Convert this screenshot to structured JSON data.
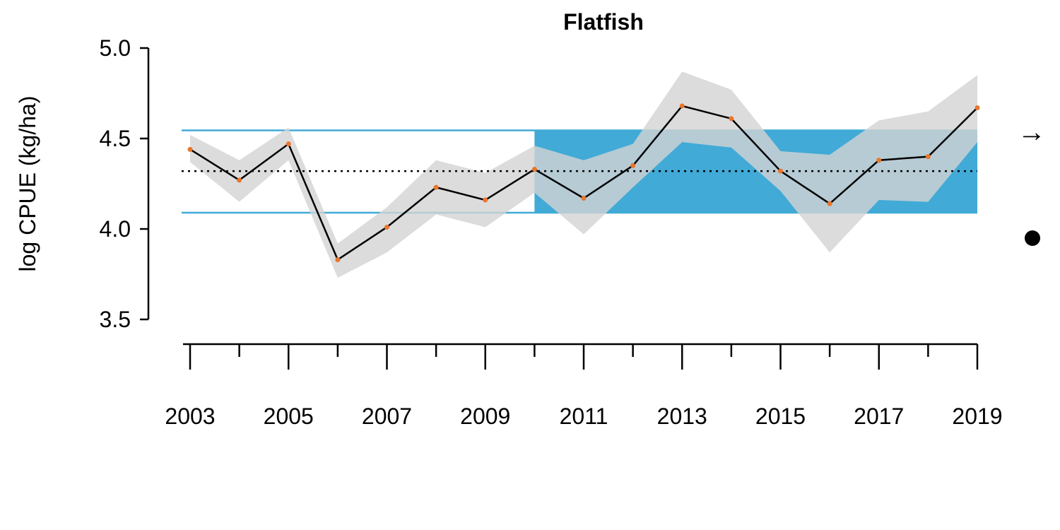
{
  "chart_data": {
    "type": "line",
    "title": "Flatfish",
    "ylabel": "log CPUE (kg/ha)",
    "xlabel": "",
    "ylim": [
      3.5,
      5.0
    ],
    "xlim": [
      2003,
      2019
    ],
    "y_ticks": [
      "3.5",
      "4.0",
      "4.5",
      "5.0"
    ],
    "x_ticks": [
      "2003",
      "2005",
      "2007",
      "2009",
      "2011",
      "2013",
      "2015",
      "2017",
      "2019"
    ],
    "x_minor_ticks": [
      2004,
      2006,
      2008,
      2010,
      2012,
      2014,
      2016,
      2018
    ],
    "x": [
      2003,
      2004,
      2005,
      2006,
      2007,
      2008,
      2009,
      2010,
      2011,
      2012,
      2013,
      2014,
      2015,
      2016,
      2017,
      2018,
      2019
    ],
    "values": [
      4.44,
      4.27,
      4.47,
      3.83,
      4.01,
      4.23,
      4.16,
      4.33,
      4.17,
      4.35,
      4.68,
      4.61,
      4.32,
      4.14,
      4.38,
      4.4,
      4.67
    ],
    "upper": [
      4.52,
      4.38,
      4.56,
      3.92,
      4.12,
      4.38,
      4.31,
      4.46,
      4.38,
      4.47,
      4.87,
      4.77,
      4.43,
      4.41,
      4.6,
      4.65,
      4.85
    ],
    "lower": [
      4.37,
      4.15,
      4.38,
      3.73,
      3.87,
      4.08,
      4.01,
      4.2,
      3.97,
      4.23,
      4.48,
      4.45,
      4.21,
      3.87,
      4.16,
      4.15,
      4.48
    ],
    "mean": 4.32,
    "mean_plus_sd": 4.545,
    "mean_minus_sd": 4.09,
    "recent_window_start": 2010,
    "recent_window_end": 2019,
    "trend_symbol": "→",
    "status_symbol": "●",
    "colors": {
      "line": "#000000",
      "points": "#E8762B",
      "ci": "#D3D3D3",
      "sd_lines": "#41AAD6",
      "recent_fill": "#41AAD6",
      "mean_line": "#000000"
    }
  }
}
